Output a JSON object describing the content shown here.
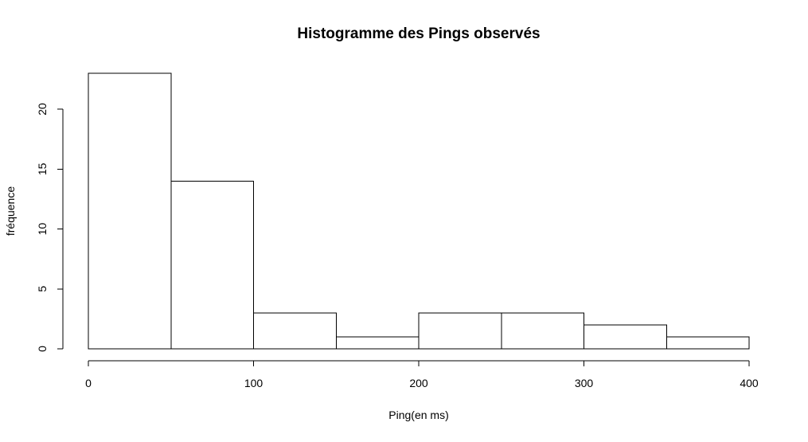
{
  "chart_data": {
    "type": "bar",
    "title": "Histogramme des Pings observés",
    "xlabel": "Ping(en ms)",
    "ylabel": "fréquence",
    "bins": [
      {
        "from": 0,
        "to": 50,
        "count": 23
      },
      {
        "from": 50,
        "to": 100,
        "count": 14
      },
      {
        "from": 100,
        "to": 150,
        "count": 3
      },
      {
        "from": 150,
        "to": 200,
        "count": 1
      },
      {
        "from": 200,
        "to": 250,
        "count": 3
      },
      {
        "from": 250,
        "to": 300,
        "count": 3
      },
      {
        "from": 300,
        "to": 350,
        "count": 2
      },
      {
        "from": 350,
        "to": 400,
        "count": 1
      }
    ],
    "xlim": [
      0,
      400
    ],
    "ylim": [
      0,
      23
    ],
    "x_ticks": [
      0,
      100,
      200,
      300,
      400
    ],
    "y_ticks": [
      0,
      5,
      10,
      15,
      20
    ],
    "grid": false,
    "legend": "none"
  }
}
